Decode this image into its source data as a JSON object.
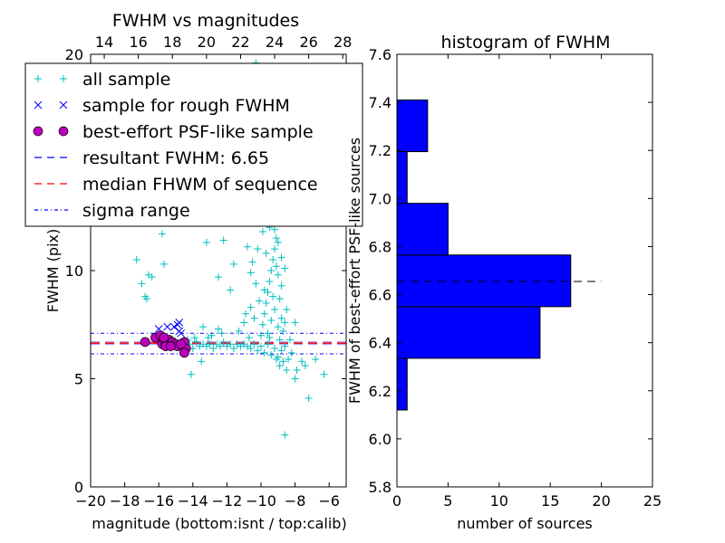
{
  "chart_data": [
    {
      "type": "scatter",
      "title": "FWHM vs magnitudes",
      "xlabel": "magnitude (bottom:isnt / top:calib)",
      "ylabel": "FWHM (pix)",
      "xlim": [
        -20,
        -5
      ],
      "ylim": [
        0,
        20
      ],
      "xticks": [
        -20,
        -18,
        -16,
        -14,
        -12,
        -10,
        -8,
        -6
      ],
      "xtick_labels": [
        "−20",
        "−18",
        "−16",
        "−14",
        "−12",
        "−10",
        "−8",
        "−6"
      ],
      "yticks": [
        0,
        5,
        10,
        15,
        20
      ],
      "ytick_labels": [
        "0",
        "5",
        "10",
        "15",
        "20"
      ],
      "top_axis": {
        "offset": 33.2,
        "ticks": [
          14,
          16,
          18,
          20,
          22,
          24,
          26,
          28
        ],
        "tick_labels": [
          "14",
          "16",
          "18",
          "20",
          "22",
          "24",
          "26",
          "28"
        ]
      },
      "legend_position": "upper-left",
      "series": [
        {
          "name": "all sample",
          "marker": "+",
          "color": "#00bfbf",
          "points": [
            [
              -17.3,
              10.5
            ],
            [
              -17.0,
              9.4
            ],
            [
              -16.8,
              8.8
            ],
            [
              -16.6,
              9.8
            ],
            [
              -16.7,
              8.7
            ],
            [
              -15.8,
              11.7
            ],
            [
              -15.7,
              10.3
            ],
            [
              -16.4,
              9.7
            ],
            [
              -13.2,
              11.3
            ],
            [
              -12.5,
              9.7
            ],
            [
              -11.8,
              9.1
            ],
            [
              -11.6,
              10.3
            ],
            [
              -10.8,
              11.1
            ],
            [
              -10.6,
              9.9
            ],
            [
              -12.2,
              11.4
            ],
            [
              -13.4,
              7.4
            ],
            [
              -12.9,
              7.0
            ],
            [
              -12.5,
              7.3
            ],
            [
              -14.1,
              5.2
            ],
            [
              -13.5,
              5.8
            ],
            [
              -7.6,
              5.8
            ],
            [
              -7.2,
              4.1
            ],
            [
              -6.3,
              5.2
            ],
            [
              -8.6,
              2.4
            ],
            [
              -7.9,
              5.4
            ],
            [
              -8.0,
              5.0
            ],
            [
              -6.8,
              5.9
            ],
            [
              -7.4,
              5.6
            ],
            [
              -10.3,
              19.6
            ],
            [
              -10.7,
              19.3
            ],
            [
              -9.4,
              13.5
            ],
            [
              -9.2,
              12.8
            ],
            [
              -9.6,
              12.2
            ],
            [
              -14.4,
              6.5
            ],
            [
              -14.2,
              6.6
            ],
            [
              -14.0,
              6.4
            ],
            [
              -13.8,
              6.7
            ],
            [
              -13.6,
              6.5
            ],
            [
              -13.4,
              6.6
            ],
            [
              -13.2,
              6.5
            ],
            [
              -13.0,
              6.6
            ],
            [
              -12.8,
              6.4
            ],
            [
              -12.6,
              6.6
            ],
            [
              -12.4,
              6.5
            ],
            [
              -12.2,
              6.7
            ],
            [
              -12.0,
              6.5
            ],
            [
              -11.8,
              6.6
            ],
            [
              -11.6,
              6.4
            ],
            [
              -11.4,
              6.6
            ],
            [
              -11.2,
              6.5
            ],
            [
              -11.0,
              6.6
            ],
            [
              -10.8,
              6.5
            ],
            [
              -10.6,
              6.4
            ],
            [
              -10.4,
              6.6
            ],
            [
              -10.2,
              6.3
            ],
            [
              -10.0,
              6.5
            ],
            [
              -9.8,
              6.2
            ],
            [
              -9.6,
              6.6
            ],
            [
              -9.4,
              6.1
            ],
            [
              -9.2,
              6.4
            ],
            [
              -9.0,
              6.0
            ],
            [
              -8.8,
              6.3
            ],
            [
              -8.6,
              6.5
            ],
            [
              -13.9,
              6.9
            ],
            [
              -13.1,
              6.9
            ],
            [
              -12.3,
              7.1
            ],
            [
              -11.3,
              7.2
            ],
            [
              -10.7,
              6.9
            ],
            [
              -14.3,
              6.8
            ],
            [
              -10.0,
              7.0
            ],
            [
              -9.9,
              7.5
            ],
            [
              -9.8,
              8.0
            ],
            [
              -9.7,
              8.5
            ],
            [
              -9.6,
              9.0
            ],
            [
              -9.5,
              9.5
            ],
            [
              -9.4,
              10.0
            ],
            [
              -9.3,
              10.5
            ],
            [
              -9.2,
              11.0
            ],
            [
              -9.1,
              11.5
            ],
            [
              -9.5,
              12.0
            ],
            [
              -9.3,
              12.3
            ],
            [
              -9.0,
              9.8
            ],
            [
              -8.9,
              8.7
            ],
            [
              -8.8,
              7.8
            ],
            [
              -8.7,
              7.2
            ],
            [
              -8.6,
              7.6
            ],
            [
              -8.5,
              8.2
            ],
            [
              -8.9,
              6.8
            ],
            [
              -9.0,
              7.4
            ],
            [
              -9.2,
              8.2
            ],
            [
              -9.4,
              7.7
            ],
            [
              -9.6,
              7.1
            ],
            [
              -9.8,
              9.1
            ],
            [
              -10.1,
              8.6
            ],
            [
              -10.3,
              9.4
            ],
            [
              -10.5,
              10.4
            ],
            [
              -10.2,
              11.0
            ],
            [
              -9.7,
              10.8
            ],
            [
              -9.1,
              10.2
            ],
            [
              -8.8,
              9.3
            ],
            [
              -8.6,
              10.1
            ],
            [
              -9.3,
              8.8
            ],
            [
              -9.5,
              6.9
            ],
            [
              -8.7,
              5.8
            ],
            [
              -8.9,
              5.6
            ],
            [
              -8.4,
              5.9
            ],
            [
              -8.2,
              6.2
            ],
            [
              -9.1,
              5.9
            ],
            [
              -8.5,
              5.4
            ],
            [
              -8.3,
              6.8
            ],
            [
              -8.0,
              7.6
            ],
            [
              -10.4,
              7.8
            ],
            [
              -10.6,
              8.3
            ],
            [
              -11.0,
              7.6
            ],
            [
              -10.9,
              8.0
            ],
            [
              -9.9,
              11.8
            ],
            [
              -9.2,
              11.9
            ],
            [
              -9.0,
              11.3
            ],
            [
              -8.8,
              10.6
            ]
          ]
        },
        {
          "name": "sample for rough FWHM",
          "marker": "x",
          "color": "#0000ff",
          "points": [
            [
              -16.0,
              7.3
            ],
            [
              -15.5,
              7.4
            ],
            [
              -15.1,
              7.4
            ],
            [
              -14.8,
              7.6
            ],
            [
              -14.8,
              7.2
            ],
            [
              -14.7,
              7.1
            ],
            [
              -14.9,
              7.5
            ]
          ]
        },
        {
          "name": "best-effort PSF-like sample",
          "marker": "o",
          "color": "#bf00bf",
          "points": [
            [
              -16.8,
              6.7
            ],
            [
              -16.2,
              6.9
            ],
            [
              -15.9,
              7.0
            ],
            [
              -15.8,
              6.6
            ],
            [
              -15.6,
              6.6
            ],
            [
              -15.4,
              6.8
            ],
            [
              -15.2,
              6.7
            ],
            [
              -15.0,
              6.6
            ],
            [
              -14.9,
              6.5
            ],
            [
              -14.6,
              6.5
            ],
            [
              -14.5,
              6.7
            ],
            [
              -14.4,
              6.4
            ],
            [
              -14.5,
              6.2
            ],
            [
              -15.6,
              6.5
            ],
            [
              -15.3,
              6.5
            ],
            [
              -15.7,
              6.9
            ],
            [
              -14.7,
              6.6
            ]
          ]
        }
      ],
      "hlines": [
        {
          "name": "resultant FWHM: 6.65",
          "y": 6.65,
          "color": "#0000ff",
          "style": "dashed"
        },
        {
          "name": "median FHWM of sequence",
          "y": 6.65,
          "color": "#ff0000",
          "style": "dashed"
        },
        {
          "name": "sigma range",
          "y": [
            6.15,
            7.1
          ],
          "color": "#0000ff",
          "style": "dashdot"
        }
      ]
    },
    {
      "type": "bar",
      "orientation": "horizontal",
      "title": "histogram of FWHM",
      "xlabel": "number of sources",
      "ylabel": "FWHM of best-effort PSF-like sources",
      "xlim": [
        0,
        25
      ],
      "ylim": [
        5.8,
        7.6
      ],
      "xticks": [
        0,
        5,
        10,
        15,
        20,
        25
      ],
      "xtick_labels": [
        "0",
        "5",
        "10",
        "15",
        "20",
        "25"
      ],
      "yticks": [
        5.8,
        6.0,
        6.2,
        6.4,
        6.6,
        6.8,
        7.0,
        7.2,
        7.4,
        7.6
      ],
      "ytick_labels": [
        "5.8",
        "6.0",
        "6.2",
        "6.4",
        "6.6",
        "6.8",
        "7.0",
        "7.2",
        "7.4",
        "7.6"
      ],
      "bin_edges": [
        6.12,
        6.335,
        6.55,
        6.765,
        6.98,
        7.195,
        7.41
      ],
      "values": [
        1,
        14,
        17,
        5,
        1,
        3
      ],
      "color": "#0000ff",
      "reference_line": {
        "y": 6.655,
        "x_range": [
          0,
          20
        ],
        "color": "#000000",
        "style": "dashed"
      }
    }
  ]
}
